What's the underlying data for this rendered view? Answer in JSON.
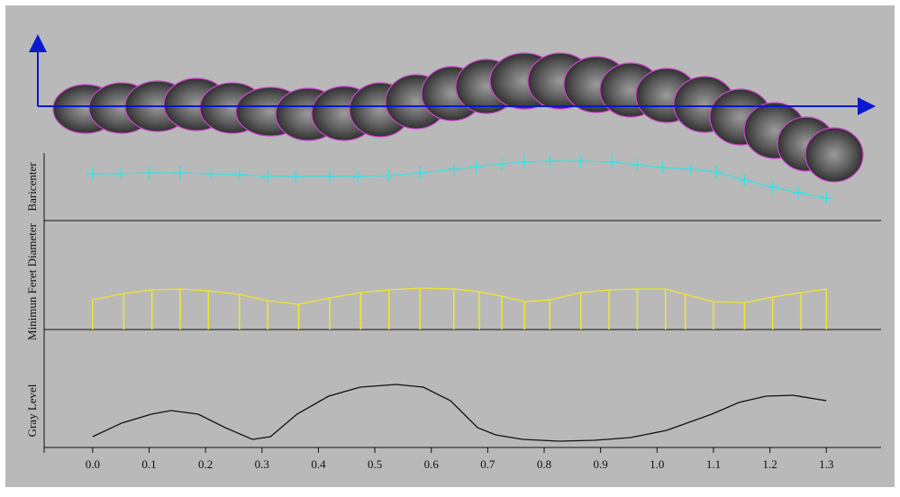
{
  "chart_data": [
    {
      "type": "line",
      "marker": "+",
      "ylabel": "Baricenter",
      "color": "#3fe0e0",
      "x": [
        0.0,
        0.05,
        0.1,
        0.155,
        0.21,
        0.26,
        0.31,
        0.36,
        0.42,
        0.47,
        0.525,
        0.58,
        0.64,
        0.68,
        0.725,
        0.765,
        0.81,
        0.865,
        0.92,
        0.965,
        1.01,
        1.06,
        1.105,
        1.155,
        1.205,
        1.25,
        1.3
      ],
      "values": [
        52,
        52,
        53,
        53,
        52,
        51,
        49,
        49,
        49,
        49,
        50,
        53,
        57,
        60,
        63,
        65,
        66,
        66,
        65,
        62,
        59,
        57,
        54,
        45,
        37,
        31,
        25
      ],
      "xlim": [
        -0.086,
        1.397
      ],
      "ylim": [
        0,
        75
      ]
    },
    {
      "type": "stem",
      "ylabel": "Minimun Feret Diameter",
      "color": "#f2e62a",
      "x": [
        0.0,
        0.055,
        0.105,
        0.155,
        0.205,
        0.26,
        0.31,
        0.365,
        0.42,
        0.475,
        0.525,
        0.58,
        0.64,
        0.685,
        0.725,
        0.765,
        0.81,
        0.865,
        0.915,
        0.965,
        1.015,
        1.05,
        1.1,
        1.155,
        1.205,
        1.255,
        1.3
      ],
      "values": [
        33,
        40,
        44,
        45,
        43,
        39,
        32,
        28,
        35,
        41,
        44,
        46,
        45,
        42,
        37,
        31,
        33,
        41,
        44,
        45,
        45,
        39,
        31,
        30,
        36,
        41,
        45
      ],
      "xlim": [
        -0.086,
        1.397
      ],
      "ylim": [
        0,
        106
      ]
    },
    {
      "type": "line",
      "ylabel": "Gray Level",
      "color": "#111111",
      "x": [
        0.0,
        0.051,
        0.104,
        0.139,
        0.187,
        0.235,
        0.283,
        0.315,
        0.362,
        0.418,
        0.474,
        0.538,
        0.586,
        0.634,
        0.682,
        0.714,
        0.762,
        0.826,
        0.889,
        0.953,
        1.017,
        1.097,
        1.145,
        1.193,
        1.241,
        1.3
      ],
      "values": [
        12,
        27,
        37,
        41,
        37,
        22,
        9,
        12,
        37,
        57,
        67,
        70,
        67,
        52,
        22,
        14,
        9,
        7,
        8,
        11,
        19,
        37,
        50,
        57,
        58,
        52
      ],
      "xlim": [
        -0.086,
        1.397
      ],
      "ylim": [
        0,
        82
      ],
      "xticks": [
        {
          "value": 0,
          "label": "0.0"
        },
        0.1,
        0.2,
        0.3,
        0.4,
        0.5,
        0.6,
        0.7,
        0.8,
        0.9,
        {
          "value": 1,
          "label": "1.0"
        },
        1.1,
        1.2,
        1.3
      ]
    }
  ]
}
